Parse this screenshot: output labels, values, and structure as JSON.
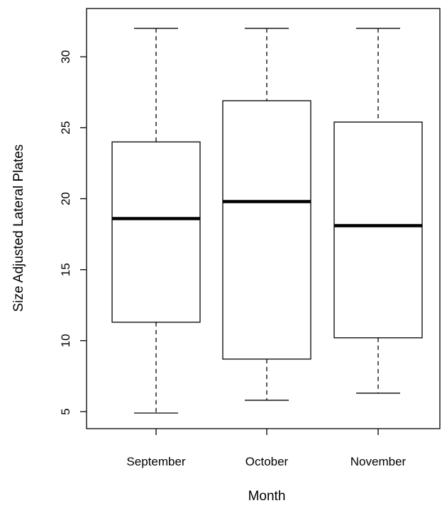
{
  "chart_data": {
    "type": "boxplot",
    "title": "",
    "xlabel": "Month",
    "ylabel": "Size Adjusted Lateral Plates",
    "categories": [
      "September",
      "October",
      "November"
    ],
    "yticks": [
      "5",
      "10",
      "15",
      "20",
      "25",
      "30"
    ],
    "ylim": [
      3.8,
      33.4
    ],
    "grid": false,
    "legend": "none",
    "boxes": [
      {
        "category": "September",
        "min": 4.9,
        "q1": 11.3,
        "median": 18.6,
        "q3": 24.0,
        "max": 32.0
      },
      {
        "category": "October",
        "min": 5.8,
        "q1": 8.7,
        "median": 19.8,
        "q3": 26.9,
        "max": 32.0
      },
      {
        "category": "November",
        "min": 6.3,
        "q1": 10.2,
        "median": 18.1,
        "q3": 25.4,
        "max": 32.0
      }
    ]
  }
}
